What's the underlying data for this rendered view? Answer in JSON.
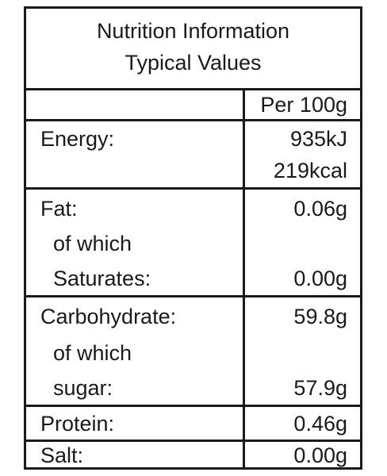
{
  "header": {
    "title": "Nutrition Information",
    "subtitle": "Typical Values",
    "column_heading": "Per 100g"
  },
  "rows": {
    "energy": {
      "label": "Energy:",
      "value_kj": "935kJ",
      "value_kcal": "219kcal"
    },
    "fat": {
      "label": "Fat:",
      "sub_label_1": "of which",
      "sub_label_2": "Saturates:",
      "value": "0.06g",
      "sub_value": "0.00g"
    },
    "carbohydrate": {
      "label": "Carbohydrate:",
      "sub_label_1": "of which",
      "sub_label_2": "sugar:",
      "value": "59.8g",
      "sub_value": "57.9g"
    },
    "protein": {
      "label": "Protein:",
      "value": "0.46g"
    },
    "salt": {
      "label": "Salt:",
      "value": "0.00g"
    }
  }
}
